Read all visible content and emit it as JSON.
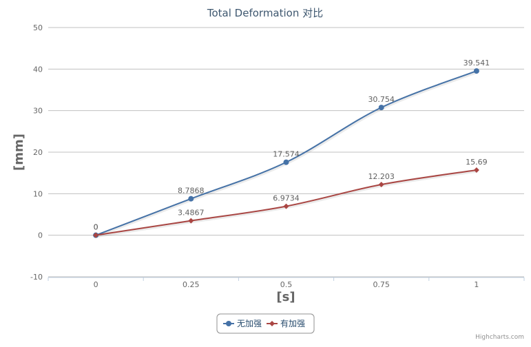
{
  "credits": "Highcharts.com",
  "chart_data": {
    "type": "line",
    "title": "Total Deformation 对比",
    "xlabel": "[s]",
    "ylabel": "[mm]",
    "x": [
      0,
      0.25,
      0.5,
      0.75,
      1
    ],
    "x_tick_labels": [
      "0",
      "0.25",
      "0.5",
      "0.75",
      "1"
    ],
    "xlim": [
      -0.125,
      1.125
    ],
    "ylim": [
      -10,
      50
    ],
    "y_ticks": [
      -10,
      0,
      10,
      20,
      30,
      40,
      50
    ],
    "grid": true,
    "legend_position": "bottom-center",
    "series": [
      {
        "name": "无加强",
        "color": "#4572A7",
        "marker": "circle",
        "values": [
          0,
          8.7868,
          17.574,
          30.754,
          39.541
        ],
        "labels": [
          "0",
          "8.7868",
          "17.574",
          "30.754",
          "39.541"
        ]
      },
      {
        "name": "有加强",
        "color": "#AA4643",
        "marker": "diamond",
        "values": [
          0,
          3.4867,
          6.9734,
          12.203,
          15.69
        ],
        "labels": [
          "0",
          "3.4867",
          "6.9734",
          "12.203",
          "15.69"
        ]
      }
    ]
  }
}
